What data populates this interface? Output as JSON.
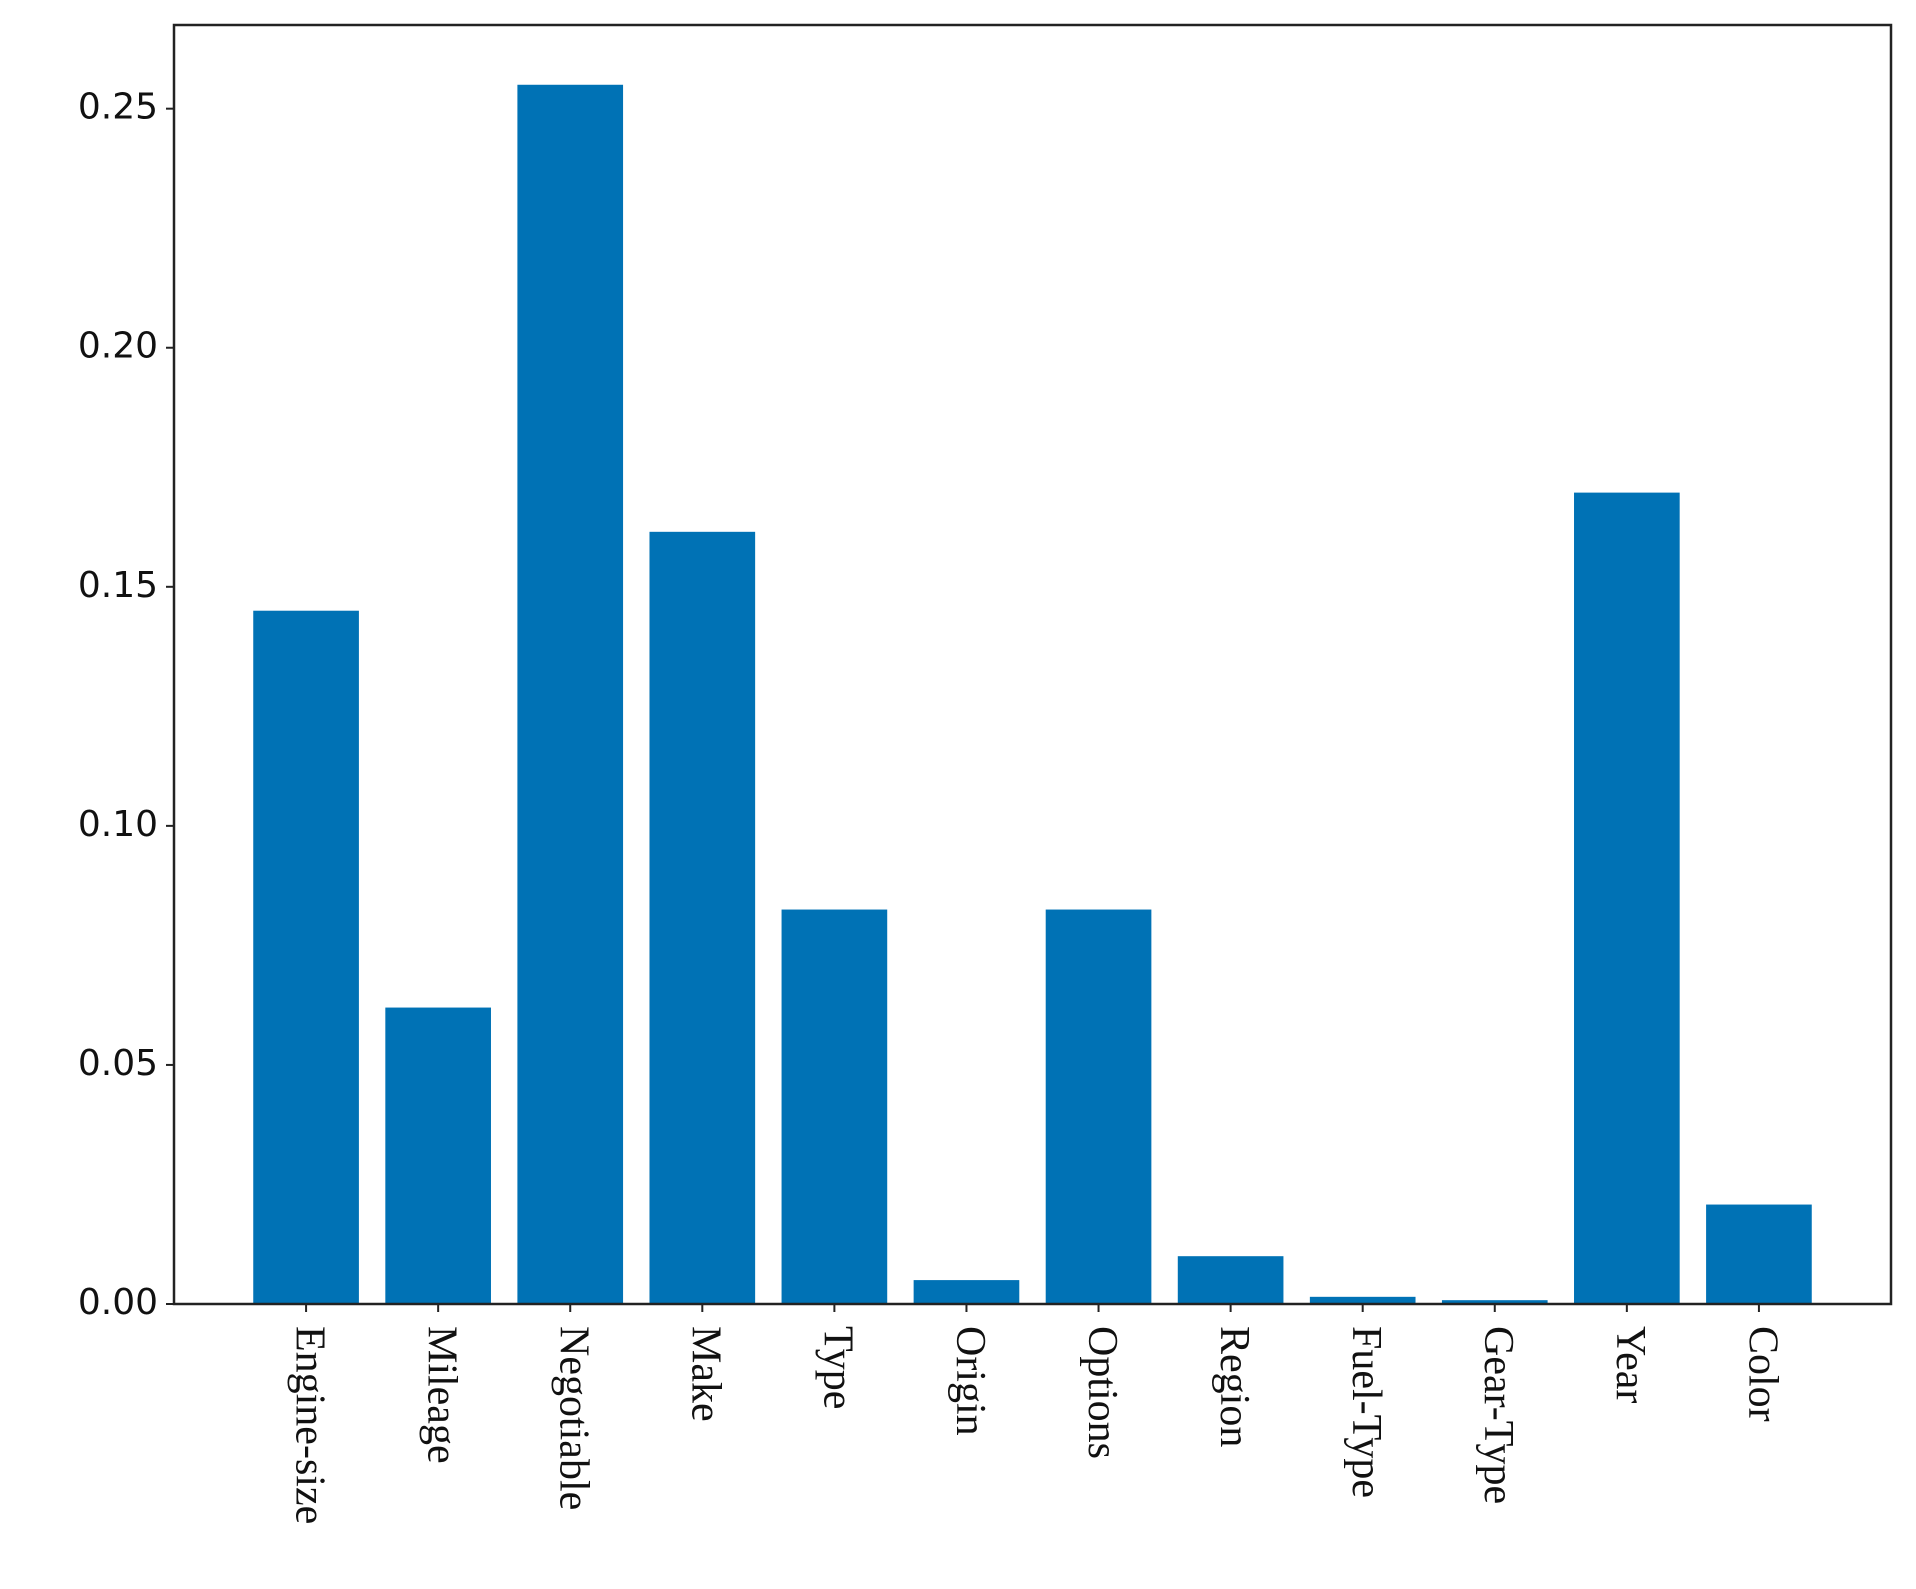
{
  "chart_data": {
    "type": "bar",
    "categories": [
      "Engine-size",
      "Mileage",
      "Negotiable",
      "Make",
      "Type",
      "Origin",
      "Options",
      "Region",
      "Fuel-Type",
      "Gear-Type",
      "Year",
      "Color"
    ],
    "values": [
      0.145,
      0.062,
      0.255,
      0.1615,
      0.0825,
      0.005,
      0.0825,
      0.01,
      0.0015,
      0.0008,
      0.1697,
      0.0208
    ],
    "color": "#0072b5",
    "ylim": [
      0,
      0.2675
    ],
    "yticks": [
      {
        "value": 0,
        "label": "0.00"
      },
      {
        "value": 0.05,
        "label": "0.05"
      },
      {
        "value": 0.1,
        "label": "0.10"
      },
      {
        "value": 0.15,
        "label": "0.15"
      },
      {
        "value": 0.2,
        "label": "0.20"
      },
      {
        "value": 0.25,
        "label": "0.25"
      }
    ]
  }
}
